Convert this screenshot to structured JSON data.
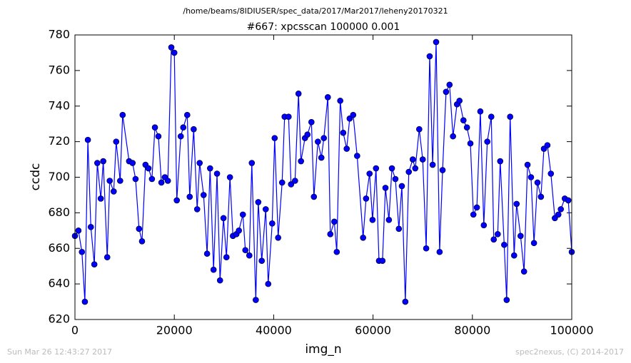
{
  "chart_data": {
    "type": "line",
    "suptitle": "/home/beams/8IDIUSER/spec_data/2017/Mar2017/leheny20170321",
    "title": "#667: xpcsscan 100000 0.001",
    "xlabel": "img_n",
    "ylabel": "ccdc",
    "footer_left": "Sun Mar 26 12:43:27 2017",
    "footer_right": "spec2nexus, (C) 2014-2017",
    "xlim": [
      0,
      100000
    ],
    "xticks": [
      0,
      20000,
      40000,
      60000,
      80000,
      100000
    ],
    "ylim": [
      620,
      780
    ],
    "yticks": [
      620,
      640,
      660,
      680,
      700,
      720,
      740,
      760,
      780
    ],
    "grid": false,
    "markers": true,
    "x": [
      0,
      700,
      1400,
      2000,
      2600,
      3200,
      3900,
      4500,
      5200,
      5700,
      6500,
      7000,
      7800,
      8300,
      9100,
      9600,
      10900,
      11600,
      12200,
      12900,
      13500,
      14200,
      14800,
      15500,
      16100,
      16800,
      17400,
      18100,
      18700,
      19400,
      20000,
      20500,
      21300,
      21800,
      22600,
      23100,
      23900,
      24600,
      25100,
      25900,
      26600,
      27200,
      27900,
      28600,
      29200,
      29900,
      30500,
      31200,
      31800,
      32500,
      33000,
      33800,
      34300,
      35100,
      35600,
      36400,
      36900,
      37600,
      38400,
      38900,
      39700,
      40200,
      40900,
      41700,
      42200,
      43000,
      43500,
      44300,
      45000,
      45500,
      46300,
      46800,
      47600,
      48100,
      48900,
      49600,
      50100,
      50900,
      51400,
      52200,
      52700,
      53400,
      54000,
      54700,
      55300,
      56000,
      56800,
      58000,
      58600,
      59300,
      59900,
      60600,
      61200,
      61900,
      62500,
      63200,
      63800,
      64500,
      65200,
      65800,
      66500,
      67200,
      68000,
      68500,
      69300,
      70000,
      70700,
      71400,
      72000,
      72700,
      73400,
      74000,
      74700,
      75400,
      76100,
      76900,
      77400,
      78200,
      78900,
      79600,
      80200,
      80900,
      81600,
      82300,
      83000,
      83800,
      84300,
      85100,
      85600,
      86400,
      86900,
      87600,
      88400,
      88900,
      89700,
      90400,
      91100,
      91800,
      92400,
      93100,
      93800,
      94400,
      95100,
      95800,
      96600,
      97300,
      97800,
      98600,
      99300,
      100000
    ],
    "series": [
      {
        "name": "ccdc",
        "color": "#0000ff",
        "values": [
          667,
          670,
          658,
          630,
          721,
          672,
          651,
          708,
          688,
          709,
          655,
          698,
          692,
          720,
          698,
          735,
          709,
          708,
          699,
          671,
          664,
          707,
          705,
          699,
          728,
          723,
          697,
          700,
          698,
          773,
          770,
          687,
          723,
          728,
          735,
          689,
          727,
          682,
          708,
          690,
          657,
          705,
          648,
          702,
          642,
          677,
          655,
          700,
          667,
          668,
          670,
          679,
          659,
          656,
          708,
          631,
          686,
          653,
          682,
          640,
          674,
          722,
          666,
          697,
          734,
          734,
          696,
          698,
          747,
          709,
          722,
          724,
          731,
          689,
          720,
          711,
          722,
          745,
          668,
          675,
          658,
          743,
          725,
          716,
          733,
          735,
          712,
          666,
          688,
          702,
          676,
          705,
          653,
          653,
          694,
          676,
          705,
          699,
          671,
          695,
          630,
          703,
          710,
          705,
          727,
          710,
          660,
          768,
          707,
          776,
          658,
          704,
          748,
          752,
          723,
          741,
          743,
          732,
          728,
          719,
          679,
          683,
          737,
          673,
          720,
          734,
          665,
          668,
          709,
          662,
          631,
          734,
          656,
          685,
          667,
          647,
          707,
          700,
          663,
          697,
          689,
          716,
          718,
          702,
          677,
          679,
          682,
          688,
          687,
          658
        ]
      }
    ]
  }
}
